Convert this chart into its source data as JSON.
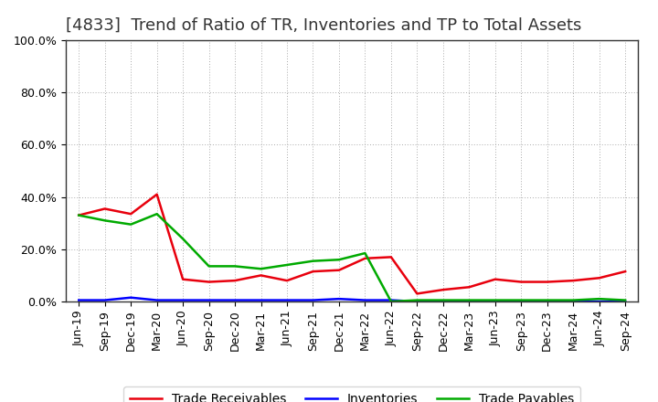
{
  "title": "[4833]  Trend of Ratio of TR, Inventories and TP to Total Assets",
  "labels": [
    "Jun-19",
    "Sep-19",
    "Dec-19",
    "Mar-20",
    "Jun-20",
    "Sep-20",
    "Dec-20",
    "Mar-21",
    "Jun-21",
    "Sep-21",
    "Dec-21",
    "Mar-22",
    "Jun-22",
    "Sep-22",
    "Dec-22",
    "Mar-23",
    "Jun-23",
    "Sep-23",
    "Dec-23",
    "Mar-24",
    "Jun-24",
    "Sep-24"
  ],
  "trade_receivables": [
    0.33,
    0.355,
    0.335,
    0.41,
    0.085,
    0.075,
    0.08,
    0.1,
    0.08,
    0.115,
    0.12,
    0.165,
    0.17,
    0.03,
    0.045,
    0.055,
    0.085,
    0.075,
    0.075,
    0.08,
    0.09,
    0.115
  ],
  "inventories": [
    0.005,
    0.005,
    0.015,
    0.005,
    0.005,
    0.005,
    0.005,
    0.005,
    0.005,
    0.005,
    0.01,
    0.005,
    0.005,
    0.0,
    0.0,
    0.0,
    0.0,
    0.0,
    0.0,
    0.0,
    0.0,
    0.0
  ],
  "trade_payables": [
    0.33,
    0.31,
    0.295,
    0.335,
    0.24,
    0.135,
    0.135,
    0.125,
    0.14,
    0.155,
    0.16,
    0.185,
    0.0,
    0.005,
    0.005,
    0.005,
    0.005,
    0.005,
    0.005,
    0.005,
    0.01,
    0.005
  ],
  "tr_color": "#e8000d",
  "inv_color": "#0000ff",
  "tp_color": "#00aa00",
  "ylim_low": 0.0,
  "ylim_high": 1.0,
  "yticks": [
    0.0,
    0.2,
    0.4,
    0.6,
    0.8,
    1.0
  ],
  "background_color": "#ffffff",
  "plot_bg_color": "#ffffff",
  "grid_color": "#aaaaaa",
  "legend_labels": [
    "Trade Receivables",
    "Inventories",
    "Trade Payables"
  ],
  "title_fontsize": 13,
  "tick_fontsize": 9,
  "legend_fontsize": 10
}
